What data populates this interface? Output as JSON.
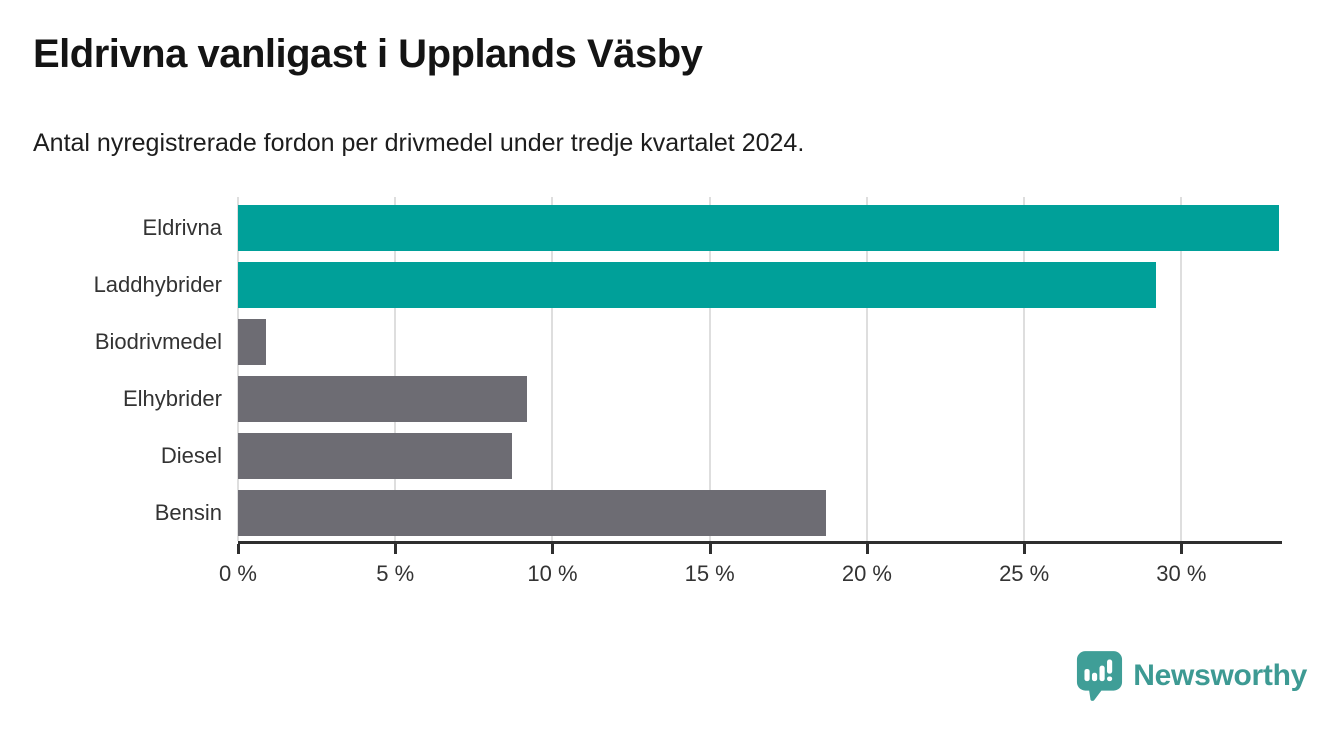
{
  "header": {
    "title": "Eldrivna vanligast i Upplands Väsby",
    "subtitle": "Antal nyregistrerade fordon per drivmedel under tredje kvartalet 2024."
  },
  "chart_data": {
    "type": "bar",
    "orientation": "horizontal",
    "title": "Eldrivna vanligast i Upplands Väsby",
    "subtitle": "Antal nyregistrerade fordon per drivmedel under tredje kvartalet 2024.",
    "categories": [
      "Eldrivna",
      "Laddhybrider",
      "Biodrivmedel",
      "Elhybrider",
      "Diesel",
      "Bensin"
    ],
    "values": [
      33.1,
      29.2,
      0.9,
      9.2,
      8.7,
      18.7
    ],
    "unit": "%",
    "xlabel": "",
    "ylabel": "",
    "xlim": [
      0,
      33.2
    ],
    "ticks": [
      0,
      5,
      10,
      15,
      20,
      25,
      30
    ],
    "tick_labels": [
      "0 %",
      "5 %",
      "10 %",
      "15 %",
      "20 %",
      "25 %",
      "30 %"
    ],
    "bar_colors": [
      "#00a099",
      "#00a099",
      "#6d6c73",
      "#6d6c73",
      "#6d6c73",
      "#6d6c73"
    ],
    "grid": true,
    "legend_position": "none"
  },
  "colors": {
    "accent_teal": "#00a099",
    "neutral_gray": "#6d6c73",
    "gridline": "#dedede",
    "axis": "#2f2f2f",
    "brand_teal": "#3d9a93"
  },
  "footer": {
    "brand": "Newsworthy",
    "logo_icon": "newsworthy-speech-bubble-chart-icon"
  }
}
